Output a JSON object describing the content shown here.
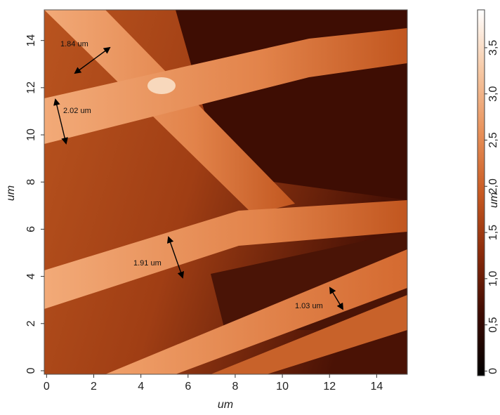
{
  "chart_data": {
    "type": "heatmap",
    "xlabel": "um",
    "ylabel": "um",
    "xlim": [
      -0.1,
      15.3
    ],
    "ylim": [
      -0.15,
      15.3
    ],
    "xticks": [
      0,
      2,
      4,
      6,
      8,
      10,
      12,
      14
    ],
    "yticks": [
      0,
      2,
      4,
      6,
      8,
      10,
      12,
      14
    ],
    "colorbar": {
      "label": "um",
      "clim": [
        -0.05,
        3.91
      ],
      "colors": [
        "#000000",
        "#3c0a02",
        "#8a2a0a",
        "#c85a22",
        "#e8915a",
        "#f6c8a4",
        "#ffffff"
      ],
      "ticks": [
        0,
        {
          "value": 0.5,
          "label": "0,5"
        },
        {
          "value": 1.0,
          "label": "1,0"
        },
        {
          "value": 1.5,
          "label": "1,5"
        },
        {
          "value": 2.0,
          "label": "2,0"
        },
        {
          "value": 2.5,
          "label": "2,5"
        },
        {
          "value": 3.0,
          "label": "3,0"
        },
        {
          "value": 3.5,
          "label": "3,5"
        }
      ]
    },
    "annotations": [
      "1.84 um",
      "2.02 um",
      "1.91 um",
      "1.03 um"
    ]
  }
}
